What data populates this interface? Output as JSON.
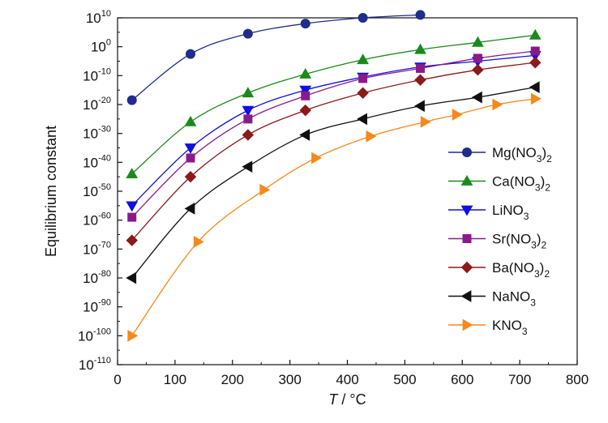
{
  "chart_data": {
    "type": "line",
    "title": "",
    "xlabel": {
      "var": "T",
      "unit": "°C"
    },
    "ylabel": "Equilibrium constant",
    "xlim": [
      0,
      800
    ],
    "ylim_exponent": [
      -110,
      10
    ],
    "x_ticks": [
      0,
      100,
      200,
      300,
      400,
      500,
      600,
      700,
      800
    ],
    "y_tick_exponents": [
      10,
      0,
      -10,
      -20,
      -30,
      -40,
      -50,
      -60,
      -70,
      -80,
      -90,
      -100,
      -110
    ],
    "y_tick_base": "10",
    "y_scale": "log",
    "legend_position": "right",
    "series": [
      {
        "name": "Mg(NO3)2",
        "label_parts": [
          [
            "Mg(NO",
            false
          ],
          [
            "3",
            true
          ],
          [
            ")",
            false
          ],
          [
            "2",
            true
          ]
        ],
        "color": "#1f2d8c",
        "marker": "circle",
        "x": [
          25,
          127,
          227,
          327,
          427,
          527
        ],
        "log10_y": [
          -18.5,
          -2.5,
          4.5,
          8,
          10,
          11
        ]
      },
      {
        "name": "Ca(NO3)2",
        "label_parts": [
          [
            "Ca(NO",
            false
          ],
          [
            "3",
            true
          ],
          [
            ")",
            false
          ],
          [
            "2",
            true
          ]
        ],
        "color": "#1a8a1a",
        "marker": "triangle-up",
        "x": [
          25,
          127,
          227,
          327,
          427,
          527,
          627,
          727
        ],
        "log10_y": [
          -44,
          -26,
          -16,
          -9.5,
          -4.5,
          -1,
          1.5,
          4
        ]
      },
      {
        "name": "LiNO3",
        "label_parts": [
          [
            "LiNO",
            false
          ],
          [
            "3",
            true
          ]
        ],
        "color": "#1010e0",
        "marker": "triangle-down",
        "x": [
          25,
          127,
          227,
          327,
          427,
          527,
          627,
          727
        ],
        "log10_y": [
          -55,
          -35,
          -22,
          -15,
          -10.5,
          -7,
          -5,
          -3
        ]
      },
      {
        "name": "Sr(NO3)2",
        "label_parts": [
          [
            "Sr(NO",
            false
          ],
          [
            "3",
            true
          ],
          [
            ")",
            false
          ],
          [
            "2",
            true
          ]
        ],
        "color": "#8a1a8a",
        "marker": "square",
        "x": [
          25,
          127,
          227,
          327,
          427,
          527,
          627,
          727
        ],
        "log10_y": [
          -59,
          -38.5,
          -25,
          -17,
          -11,
          -7.5,
          -4,
          -1.5
        ]
      },
      {
        "name": "Ba(NO3)2",
        "label_parts": [
          [
            "Ba(NO",
            false
          ],
          [
            "3",
            true
          ],
          [
            ")",
            false
          ],
          [
            "2",
            true
          ]
        ],
        "color": "#8b1a1a",
        "marker": "diamond",
        "x": [
          25,
          127,
          227,
          327,
          427,
          527,
          627,
          727
        ],
        "log10_y": [
          -67,
          -45,
          -30.5,
          -22,
          -16,
          -11.5,
          -8,
          -5.5
        ]
      },
      {
        "name": "NaNO3",
        "label_parts": [
          [
            "NaNO",
            false
          ],
          [
            "3",
            true
          ]
        ],
        "color": "#111111",
        "marker": "triangle-left",
        "x": [
          25,
          127,
          227,
          327,
          427,
          527,
          627,
          727
        ],
        "log10_y": [
          -80,
          -56,
          -41.5,
          -30.5,
          -25,
          -20.5,
          -17.5,
          -14
        ]
      },
      {
        "name": "KNO3",
        "label_parts": [
          [
            "KNO",
            false
          ],
          [
            "3",
            true
          ]
        ],
        "color": "#f5891a",
        "marker": "triangle-right",
        "x": [
          25,
          140,
          255,
          345,
          440,
          535,
          590,
          660,
          727
        ],
        "log10_y": [
          -100,
          -67.5,
          -49.5,
          -38.5,
          -31,
          -26,
          -23.5,
          -20,
          -18
        ]
      }
    ]
  }
}
